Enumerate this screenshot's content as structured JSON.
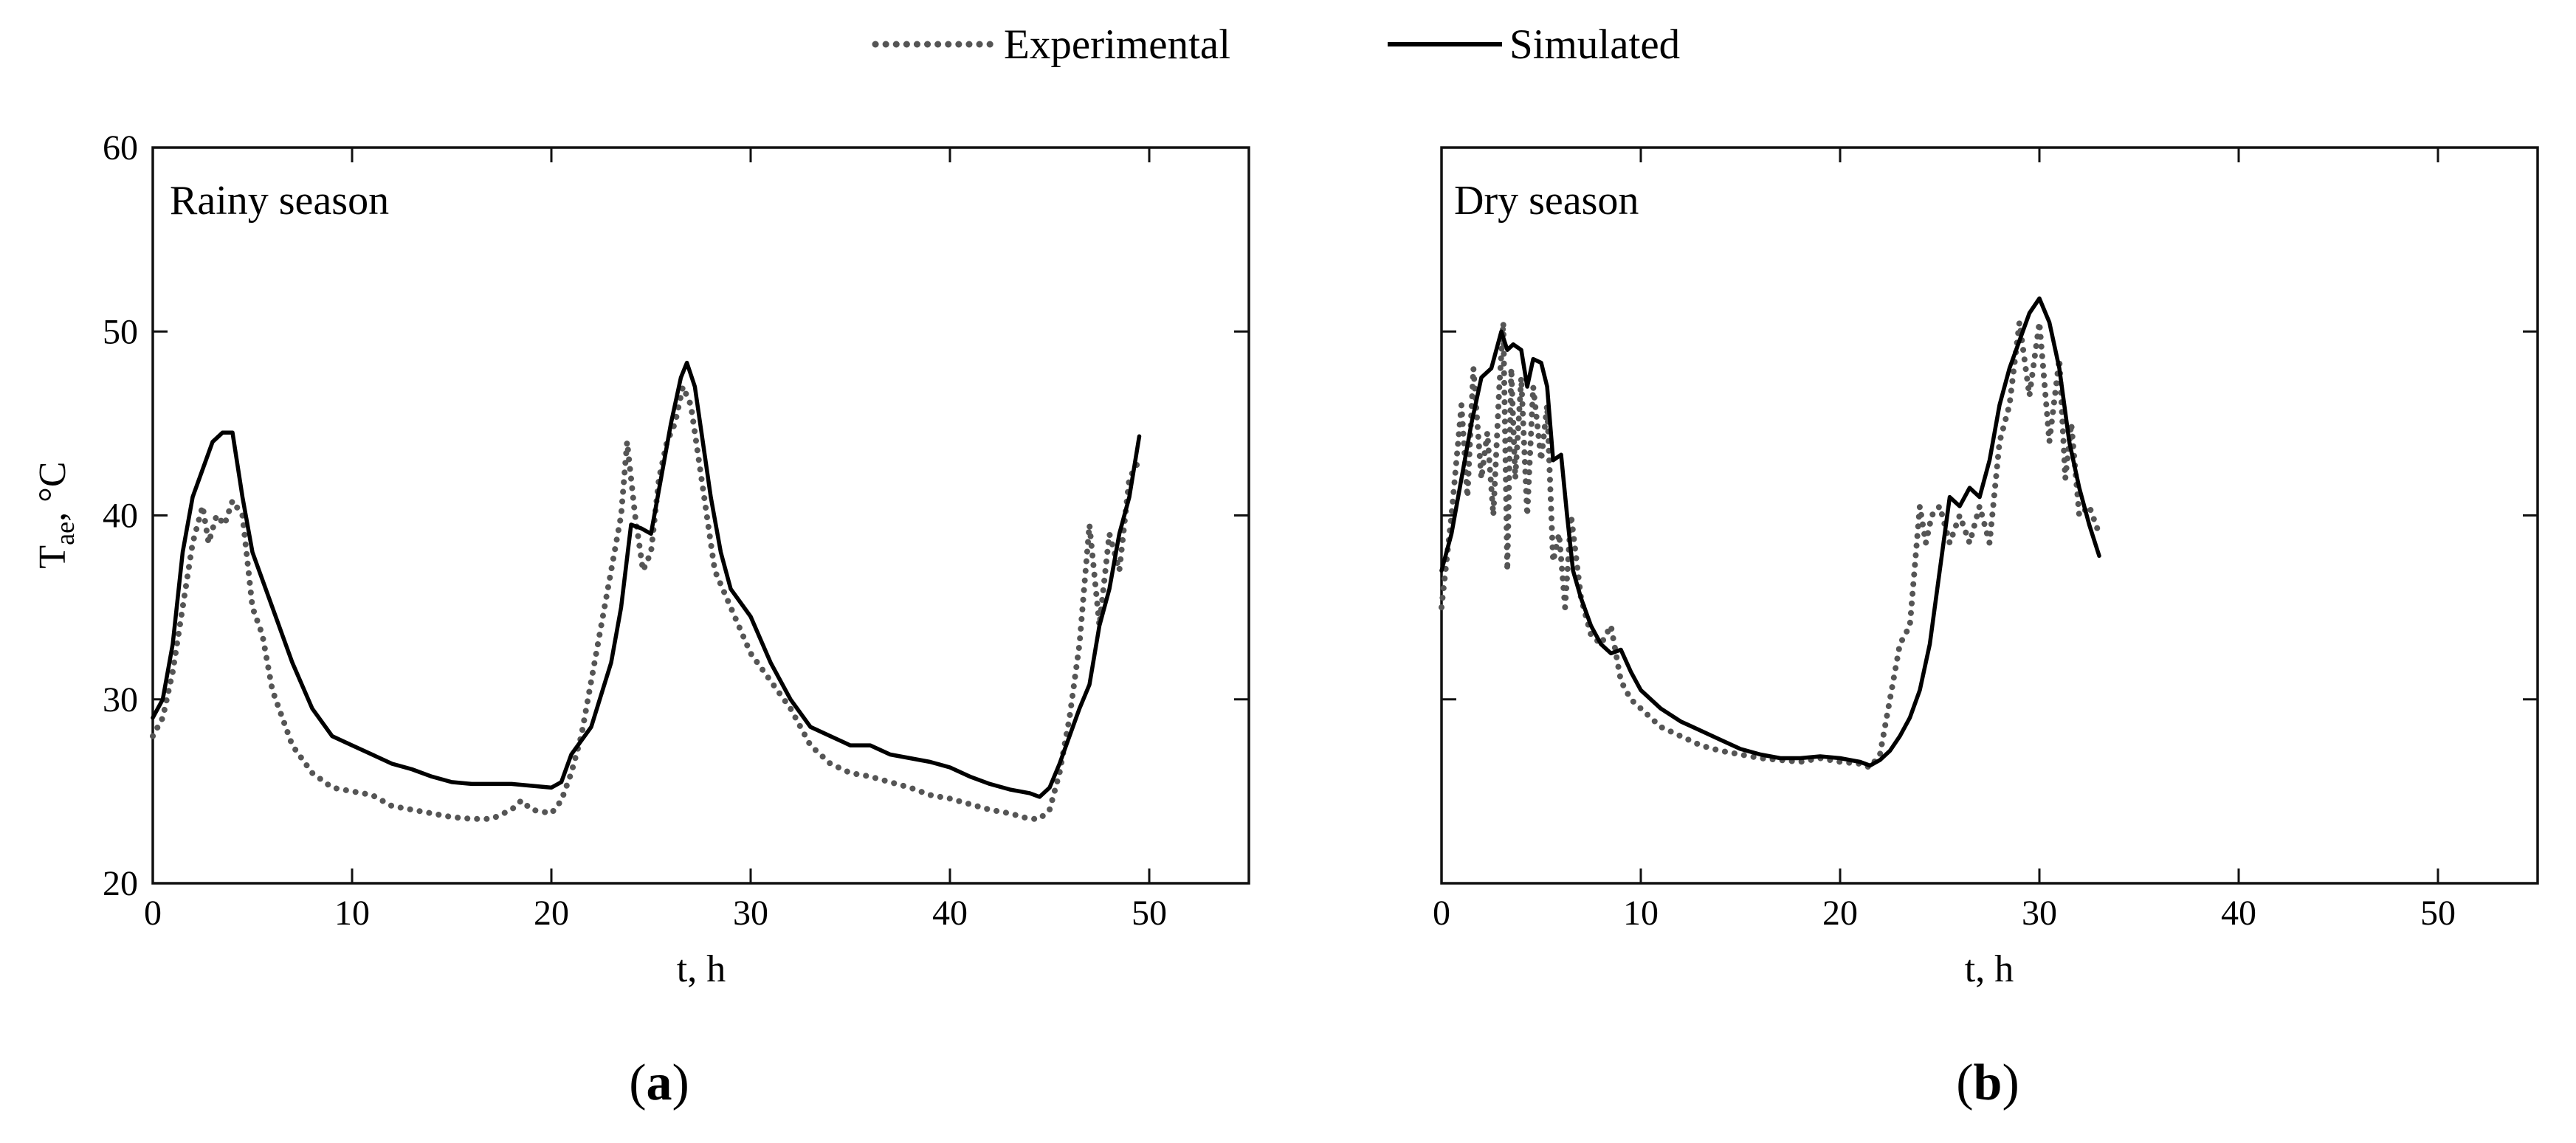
{
  "legend": {
    "experimental_label": "Experimental",
    "simulated_label": "Simulated"
  },
  "colors": {
    "experimental": "#555555",
    "simulated": "#000000",
    "axis": "#111111"
  },
  "chart_data": [
    {
      "type": "line",
      "panel_label": "(a)",
      "panel_letter": "a",
      "annotation": "Rainy season",
      "xlabel": "t, h",
      "ylabel_main": "T",
      "ylabel_sub": "ae",
      "ylabel_unit": ", °C",
      "xlim": [
        0,
        55
      ],
      "ylim": [
        20,
        60
      ],
      "xticks": [
        0,
        10,
        20,
        30,
        40,
        50
      ],
      "yticks": [
        20,
        30,
        40,
        50,
        60
      ],
      "show_ytick_labels": true,
      "grid": false,
      "series": [
        {
          "name": "Experimental",
          "style": "dotted",
          "x": [
            0,
            0.5,
            1,
            1.5,
            2,
            2.5,
            2.8,
            3.2,
            3.6,
            4,
            4.5,
            5,
            5.5,
            6,
            7,
            8,
            9,
            10,
            11,
            12,
            13,
            14,
            15,
            16,
            17,
            18,
            18.5,
            19,
            20,
            20.5,
            21,
            21.5,
            22,
            22.5,
            23,
            23.5,
            23.8,
            24.2,
            24.6,
            25,
            25.4,
            25.8,
            26.2,
            26.6,
            27,
            27.4,
            27.8,
            28.2,
            28.6,
            29,
            30,
            31,
            32,
            33,
            34,
            35,
            36,
            37,
            38,
            39,
            40,
            41,
            42,
            43,
            44,
            44.5,
            45,
            45.5,
            46,
            46.5,
            47,
            47.5,
            48,
            48.5,
            49,
            49.5
          ],
          "y": [
            28,
            29,
            31.5,
            35,
            38.5,
            40.5,
            38.5,
            40,
            39.5,
            40.8,
            40,
            35,
            33.5,
            30.5,
            27.5,
            26,
            25.2,
            25,
            24.8,
            24.2,
            24,
            23.8,
            23.6,
            23.5,
            23.5,
            24,
            24.5,
            24,
            23.8,
            24.5,
            26,
            28,
            31,
            34,
            37,
            40,
            44,
            40,
            37,
            38,
            42,
            44,
            45,
            47,
            46,
            43,
            40,
            37,
            36,
            35,
            32.5,
            31,
            29.5,
            27.5,
            26.5,
            26,
            25.8,
            25.5,
            25.2,
            24.8,
            24.6,
            24.3,
            24,
            23.8,
            23.5,
            23.5,
            24,
            26,
            29,
            33,
            39.5,
            34,
            39,
            37,
            42,
            43
          ]
        },
        {
          "name": "Simulated",
          "style": "solid",
          "x": [
            0,
            0.5,
            1,
            1.5,
            2,
            2.5,
            3,
            3.5,
            4,
            4.5,
            5,
            5.5,
            6,
            7,
            8,
            9,
            10,
            11,
            12,
            13,
            14,
            15,
            16,
            17,
            18,
            19,
            20,
            20.5,
            21,
            22,
            23,
            23.5,
            24,
            24.5,
            25,
            25.5,
            26,
            26.5,
            26.8,
            27.2,
            27.6,
            28,
            28.5,
            29,
            30,
            31,
            32,
            33,
            34,
            35,
            36,
            37,
            38,
            39,
            40,
            41,
            42,
            43,
            44,
            44.5,
            45,
            45.5,
            46,
            46.5,
            47,
            47.5,
            48,
            48.5,
            49,
            49.5
          ],
          "y": [
            29,
            30,
            33,
            38,
            41,
            42.5,
            44,
            44.5,
            44.5,
            41,
            38,
            36.5,
            35,
            32,
            29.5,
            28,
            27.5,
            27,
            26.5,
            26.2,
            25.8,
            25.5,
            25.4,
            25.4,
            25.4,
            25.3,
            25.2,
            25.5,
            27,
            28.5,
            32,
            35,
            39.5,
            39.3,
            39,
            42,
            45,
            47.5,
            48.3,
            47,
            44,
            41,
            38,
            36,
            34.5,
            32,
            30,
            28.5,
            28,
            27.5,
            27.5,
            27,
            26.8,
            26.6,
            26.3,
            25.8,
            25.4,
            25.1,
            24.9,
            24.7,
            25.2,
            26.5,
            28,
            29.5,
            30.8,
            34,
            36,
            39,
            41,
            44.3
          ]
        }
      ]
    },
    {
      "type": "line",
      "panel_label": "(b)",
      "panel_letter": "b",
      "annotation": "Dry season",
      "xlabel": "t, h",
      "xlim": [
        0,
        55
      ],
      "ylim": [
        20,
        60
      ],
      "xticks": [
        0,
        10,
        20,
        30,
        40,
        50
      ],
      "yticks": [
        20,
        30,
        40,
        50,
        60
      ],
      "show_ytick_labels": false,
      "grid": false,
      "series": [
        {
          "name": "Experimental",
          "style": "dotted",
          "x": [
            0,
            0.5,
            1,
            1.3,
            1.6,
            2,
            2.3,
            2.6,
            2.9,
            3.1,
            3.3,
            3.5,
            3.7,
            4,
            4.3,
            4.6,
            5,
            5.3,
            5.6,
            5.9,
            6.2,
            6.5,
            7,
            7.5,
            8,
            8.5,
            9,
            9.5,
            10,
            11,
            12,
            13,
            14,
            15,
            16,
            17,
            18,
            19,
            20,
            21,
            21.5,
            22,
            22.5,
            23,
            23.5,
            24,
            24.3,
            24.6,
            25,
            25.5,
            26,
            26.5,
            27,
            27.5,
            28,
            28.5,
            29,
            29.5,
            30,
            30.5,
            31,
            31.3,
            31.6,
            32,
            32.5,
            33
          ],
          "y": [
            35,
            40,
            46,
            41,
            48,
            42,
            44.5,
            40,
            47,
            50.5,
            37,
            48,
            42,
            47.5,
            40,
            47,
            43,
            46,
            37.5,
            39,
            35,
            40,
            35.5,
            33.5,
            33,
            34,
            31,
            30,
            29.5,
            28.5,
            28,
            27.5,
            27.2,
            27,
            26.8,
            26.7,
            26.6,
            26.8,
            26.6,
            26.5,
            26.3,
            27,
            30,
            33,
            34,
            40.5,
            38.5,
            40,
            40.5,
            38.5,
            40,
            38.5,
            40.5,
            38.5,
            44,
            46,
            50.5,
            46.5,
            50.5,
            44,
            48.5,
            42,
            45,
            40,
            40.5,
            39
          ]
        },
        {
          "name": "Simulated",
          "style": "solid",
          "x": [
            0,
            0.5,
            1,
            1.5,
            2,
            2.5,
            3,
            3.3,
            3.6,
            4,
            4.3,
            4.6,
            5,
            5.3,
            5.6,
            6,
            6.3,
            6.6,
            7,
            7.5,
            8,
            8.5,
            9,
            9.5,
            10,
            11,
            12,
            13,
            14,
            15,
            16,
            17,
            18,
            19,
            20,
            21,
            21.5,
            22,
            22.5,
            23,
            23.5,
            24,
            24.5,
            25,
            25.5,
            26,
            26.5,
            27,
            27.5,
            28,
            28.5,
            29,
            29.5,
            30,
            30.5,
            31,
            31.5,
            32,
            32.5,
            33
          ],
          "y": [
            37,
            39,
            42,
            45,
            47.5,
            48,
            50,
            49,
            49.3,
            49,
            47,
            48.5,
            48.3,
            47,
            43,
            43.3,
            40,
            37,
            35.5,
            34,
            33,
            32.5,
            32.7,
            31.5,
            30.5,
            29.5,
            28.8,
            28.3,
            27.8,
            27.3,
            27,
            26.8,
            26.8,
            26.9,
            26.8,
            26.6,
            26.4,
            26.7,
            27.2,
            28,
            29,
            30.5,
            33,
            37,
            41,
            40.5,
            41.5,
            41,
            43,
            46,
            48,
            49.5,
            51,
            51.8,
            50.5,
            48,
            44,
            41.5,
            39.5,
            37.8
          ]
        }
      ]
    }
  ]
}
